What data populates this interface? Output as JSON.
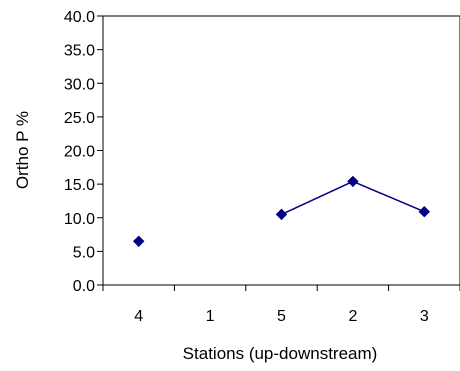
{
  "chart_data": {
    "type": "line",
    "title": "",
    "xlabel": "Stations (up-downstream)",
    "ylabel": "Ortho P %",
    "categories": [
      "4",
      "1",
      "5",
      "2",
      "3"
    ],
    "ylim": [
      0,
      40
    ],
    "yticks": [
      "0.0",
      "5.0",
      "10.0",
      "15.0",
      "20.0",
      "25.0",
      "30.0",
      "35.0",
      "40.0"
    ],
    "grid": false,
    "legend": "none",
    "series": [
      {
        "values": [
          6.5,
          null,
          10.5,
          15.4,
          10.9
        ],
        "color": "#000080",
        "marker": "diamond"
      }
    ]
  }
}
